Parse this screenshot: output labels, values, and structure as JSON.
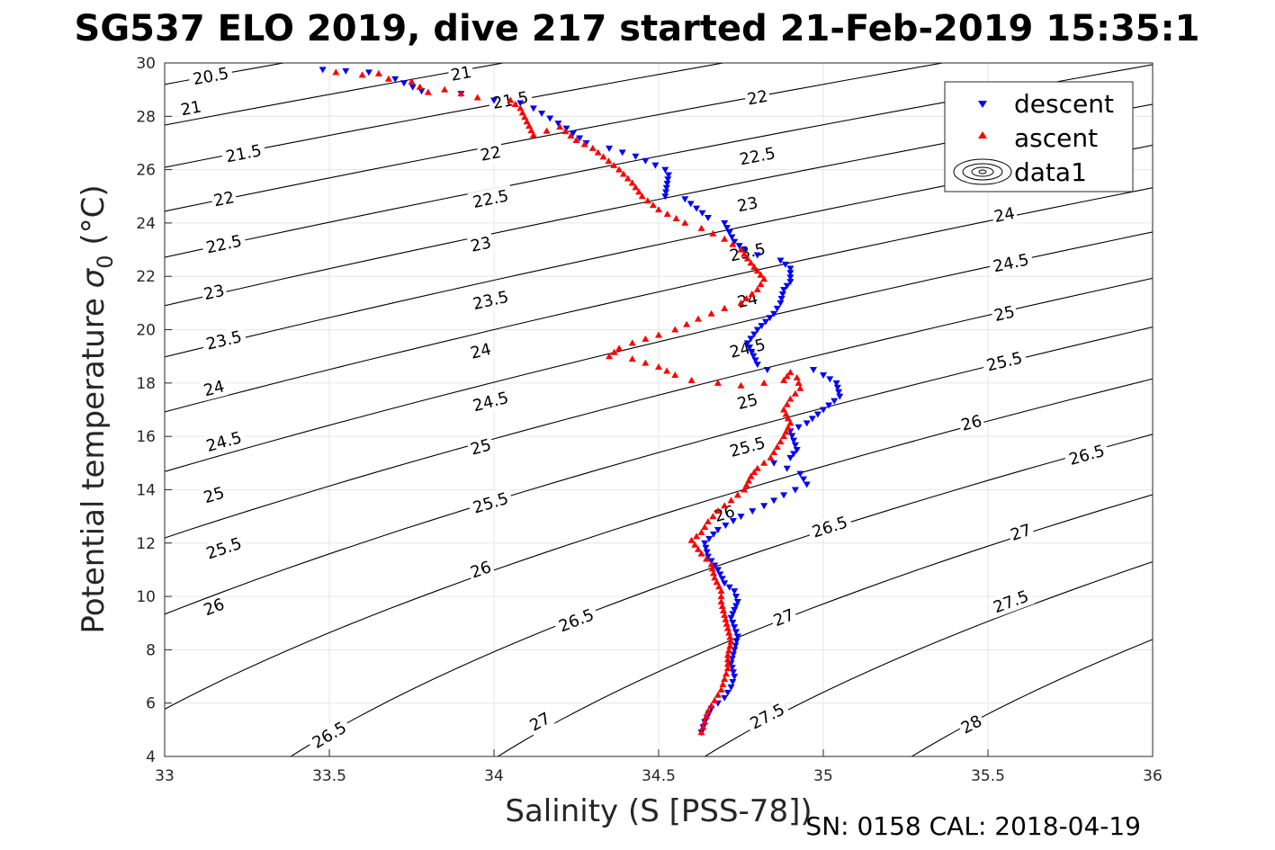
{
  "chart_data": {
    "type": "scatter",
    "title": "SG537 ELO 2019, dive 217 started 21-Feb-2019 15:35:1",
    "xlabel": "Salinity (S [PSS-78])",
    "ylabel_main": "Potential temperature ",
    "ylabel_symbol": "σ",
    "ylabel_sub": "0",
    "ylabel_unit": " (°C)",
    "footer": "SN: 0158  CAL: 2018-04-19",
    "xlim": [
      33,
      36
    ],
    "ylim": [
      4,
      30
    ],
    "x_ticks": [
      "33",
      "33.5",
      "34",
      "34.5",
      "35",
      "35.5",
      "36"
    ],
    "y_ticks": [
      "4",
      "6",
      "8",
      "10",
      "12",
      "14",
      "16",
      "18",
      "20",
      "22",
      "24",
      "26",
      "28",
      "30"
    ],
    "grid": true,
    "legend_position": "top-right",
    "legend": [
      "descent",
      "ascent",
      "data1"
    ],
    "colors": {
      "descent": "#0000ff",
      "ascent": "#ff0000",
      "contour": "#000000",
      "grid": "#e6e6e6"
    },
    "contours": {
      "levels": [
        20.5,
        21,
        21.5,
        22,
        22.5,
        23,
        23.5,
        24,
        24.5,
        25,
        25.5,
        26,
        26.5,
        27,
        27.5,
        28
      ],
      "labels": [
        {
          "text": "20.5",
          "s": 33.14,
          "t": 29.5
        },
        {
          "text": "21",
          "s": 33.08,
          "t": 28.3
        },
        {
          "text": "21",
          "s": 33.9,
          "t": 29.6
        },
        {
          "text": "21.5",
          "s": 33.24,
          "t": 26.6
        },
        {
          "text": "21.5",
          "s": 34.05,
          "t": 28.6
        },
        {
          "text": "22",
          "s": 33.18,
          "t": 24.9
        },
        {
          "text": "22",
          "s": 33.99,
          "t": 26.6
        },
        {
          "text": "22",
          "s": 34.8,
          "t": 28.7
        },
        {
          "text": "22.5",
          "s": 33.18,
          "t": 23.2
        },
        {
          "text": "22.5",
          "s": 33.99,
          "t": 24.9
        },
        {
          "text": "22.5",
          "s": 34.8,
          "t": 26.5
        },
        {
          "text": "23",
          "s": 33.15,
          "t": 21.4
        },
        {
          "text": "23",
          "s": 33.96,
          "t": 23.2
        },
        {
          "text": "23",
          "s": 34.77,
          "t": 24.7
        },
        {
          "text": "23.5",
          "s": 33.18,
          "t": 19.6
        },
        {
          "text": "23.5",
          "s": 33.99,
          "t": 21.1
        },
        {
          "text": "23.5",
          "s": 34.77,
          "t": 22.9
        },
        {
          "text": "24",
          "s": 33.15,
          "t": 17.8
        },
        {
          "text": "24",
          "s": 33.96,
          "t": 19.2
        },
        {
          "text": "24",
          "s": 34.77,
          "t": 21.1
        },
        {
          "text": "24",
          "s": 35.55,
          "t": 24.3
        },
        {
          "text": "24.5",
          "s": 33.18,
          "t": 15.8
        },
        {
          "text": "24.5",
          "s": 33.99,
          "t": 17.3
        },
        {
          "text": "24.5",
          "s": 34.77,
          "t": 19.3
        },
        {
          "text": "24.5",
          "s": 35.57,
          "t": 22.5
        },
        {
          "text": "25",
          "s": 33.15,
          "t": 13.8
        },
        {
          "text": "25",
          "s": 33.96,
          "t": 15.6
        },
        {
          "text": "25",
          "s": 34.77,
          "t": 17.3
        },
        {
          "text": "25",
          "s": 35.55,
          "t": 20.6
        },
        {
          "text": "25.5",
          "s": 33.18,
          "t": 11.8
        },
        {
          "text": "25.5",
          "s": 33.99,
          "t": 13.5
        },
        {
          "text": "25.5",
          "s": 34.77,
          "t": 15.6
        },
        {
          "text": "25.5",
          "s": 35.55,
          "t": 18.8
        },
        {
          "text": "26",
          "s": 33.15,
          "t": 9.6
        },
        {
          "text": "26",
          "s": 33.96,
          "t": 11.0
        },
        {
          "text": "26",
          "s": 34.7,
          "t": 13.1
        },
        {
          "text": "26",
          "s": 35.45,
          "t": 16.5
        },
        {
          "text": "26.5",
          "s": 33.5,
          "t": 4.8
        },
        {
          "text": "26.5",
          "s": 34.25,
          "t": 9.1
        },
        {
          "text": "26.5",
          "s": 35.02,
          "t": 12.6
        },
        {
          "text": "26.5",
          "s": 35.8,
          "t": 15.3
        },
        {
          "text": "27",
          "s": 34.14,
          "t": 5.3
        },
        {
          "text": "27",
          "s": 34.88,
          "t": 9.2
        },
        {
          "text": "27",
          "s": 35.6,
          "t": 12.4
        },
        {
          "text": "27.5",
          "s": 34.83,
          "t": 5.5
        },
        {
          "text": "27.5",
          "s": 35.57,
          "t": 9.8
        },
        {
          "text": "28",
          "s": 35.45,
          "t": 5.2
        }
      ]
    },
    "series": [
      {
        "name": "descent",
        "marker": "triangle-down",
        "points": [
          [
            33.48,
            29.75
          ],
          [
            33.55,
            29.7
          ],
          [
            33.62,
            29.65
          ],
          [
            33.7,
            29.4
          ],
          [
            33.78,
            28.95
          ],
          [
            33.9,
            28.85
          ],
          [
            34.0,
            28.6
          ],
          [
            34.08,
            28.5
          ],
          [
            34.12,
            28.3
          ],
          [
            34.22,
            27.55
          ],
          [
            34.28,
            27.0
          ],
          [
            34.35,
            26.8
          ],
          [
            34.43,
            26.5
          ],
          [
            34.52,
            26.0
          ],
          [
            34.53,
            25.8
          ],
          [
            34.52,
            25.0
          ],
          [
            34.58,
            24.9
          ],
          [
            34.65,
            24.2
          ],
          [
            34.7,
            24.0
          ],
          [
            34.73,
            23.3
          ],
          [
            34.76,
            23.0
          ],
          [
            34.8,
            22.8
          ],
          [
            34.87,
            22.6
          ],
          [
            34.9,
            22.3
          ],
          [
            34.9,
            21.8
          ],
          [
            34.88,
            21.5
          ],
          [
            34.87,
            21.0
          ],
          [
            34.85,
            20.6
          ],
          [
            34.8,
            20.0
          ],
          [
            34.77,
            19.5
          ],
          [
            34.8,
            18.7
          ],
          [
            34.83,
            18.5
          ],
          [
            34.97,
            18.5
          ],
          [
            35.0,
            18.3
          ],
          [
            35.04,
            18.0
          ],
          [
            35.05,
            17.5
          ],
          [
            35.0,
            17.0
          ],
          [
            34.95,
            16.5
          ],
          [
            34.9,
            16.2
          ],
          [
            34.92,
            15.5
          ],
          [
            34.9,
            15.2
          ],
          [
            34.85,
            15.0
          ],
          [
            34.93,
            14.6
          ],
          [
            34.95,
            14.2
          ],
          [
            34.88,
            13.8
          ],
          [
            34.82,
            13.4
          ],
          [
            34.75,
            13.0
          ],
          [
            34.68,
            12.5
          ],
          [
            34.64,
            12.0
          ],
          [
            34.65,
            11.5
          ],
          [
            34.68,
            11.0
          ],
          [
            34.7,
            10.5
          ],
          [
            34.73,
            10.2
          ],
          [
            34.74,
            9.8
          ],
          [
            34.72,
            9.2
          ],
          [
            34.74,
            8.5
          ],
          [
            34.73,
            8.0
          ],
          [
            34.72,
            7.5
          ],
          [
            34.73,
            7.0
          ],
          [
            34.72,
            6.6
          ],
          [
            34.7,
            6.2
          ],
          [
            34.66,
            5.8
          ],
          [
            34.64,
            5.3
          ],
          [
            34.63,
            4.9
          ]
        ]
      },
      {
        "name": "ascent",
        "marker": "triangle-up",
        "points": [
          [
            33.52,
            29.65
          ],
          [
            33.6,
            29.55
          ],
          [
            33.65,
            29.6
          ],
          [
            33.68,
            29.4
          ],
          [
            33.75,
            29.3
          ],
          [
            33.8,
            28.9
          ],
          [
            33.85,
            29.0
          ],
          [
            33.95,
            28.7
          ],
          [
            34.05,
            28.6
          ],
          [
            34.08,
            28.3
          ],
          [
            34.1,
            27.8
          ],
          [
            34.12,
            27.3
          ],
          [
            34.2,
            27.6
          ],
          [
            34.25,
            27.1
          ],
          [
            34.3,
            26.8
          ],
          [
            34.38,
            26.0
          ],
          [
            34.42,
            25.5
          ],
          [
            34.45,
            25.0
          ],
          [
            34.5,
            24.5
          ],
          [
            34.58,
            24.0
          ],
          [
            34.63,
            23.8
          ],
          [
            34.7,
            23.4
          ],
          [
            34.75,
            23.0
          ],
          [
            34.78,
            22.5
          ],
          [
            34.8,
            22.2
          ],
          [
            34.82,
            21.9
          ],
          [
            34.8,
            21.5
          ],
          [
            34.75,
            21.0
          ],
          [
            34.7,
            20.8
          ],
          [
            34.62,
            20.4
          ],
          [
            34.55,
            20.0
          ],
          [
            34.5,
            19.8
          ],
          [
            34.42,
            19.5
          ],
          [
            34.38,
            19.3
          ],
          [
            34.35,
            19.0
          ],
          [
            34.42,
            18.9
          ],
          [
            34.5,
            18.6
          ],
          [
            34.55,
            18.3
          ],
          [
            34.6,
            18.1
          ],
          [
            34.68,
            18.0
          ],
          [
            34.75,
            17.9
          ],
          [
            34.82,
            18.0
          ],
          [
            34.88,
            18.1
          ],
          [
            34.9,
            18.4
          ],
          [
            34.92,
            18.2
          ],
          [
            34.93,
            17.8
          ],
          [
            34.9,
            17.4
          ],
          [
            34.88,
            17.0
          ],
          [
            34.9,
            16.5
          ],
          [
            34.88,
            16.0
          ],
          [
            34.86,
            15.6
          ],
          [
            34.84,
            15.2
          ],
          [
            34.8,
            14.8
          ],
          [
            34.78,
            14.5
          ],
          [
            34.76,
            14.0
          ],
          [
            34.72,
            13.6
          ],
          [
            34.68,
            13.2
          ],
          [
            34.65,
            12.8
          ],
          [
            34.63,
            12.4
          ],
          [
            34.6,
            12.1
          ],
          [
            34.63,
            11.6
          ],
          [
            34.66,
            11.2
          ],
          [
            34.67,
            10.7
          ],
          [
            34.69,
            10.2
          ],
          [
            34.69,
            9.8
          ],
          [
            34.7,
            9.3
          ],
          [
            34.71,
            8.8
          ],
          [
            34.72,
            8.3
          ],
          [
            34.71,
            7.8
          ],
          [
            34.71,
            7.3
          ],
          [
            34.7,
            6.9
          ],
          [
            34.69,
            6.5
          ],
          [
            34.67,
            6.1
          ],
          [
            34.65,
            5.7
          ],
          [
            34.64,
            5.3
          ],
          [
            34.63,
            4.9
          ]
        ]
      }
    ]
  }
}
